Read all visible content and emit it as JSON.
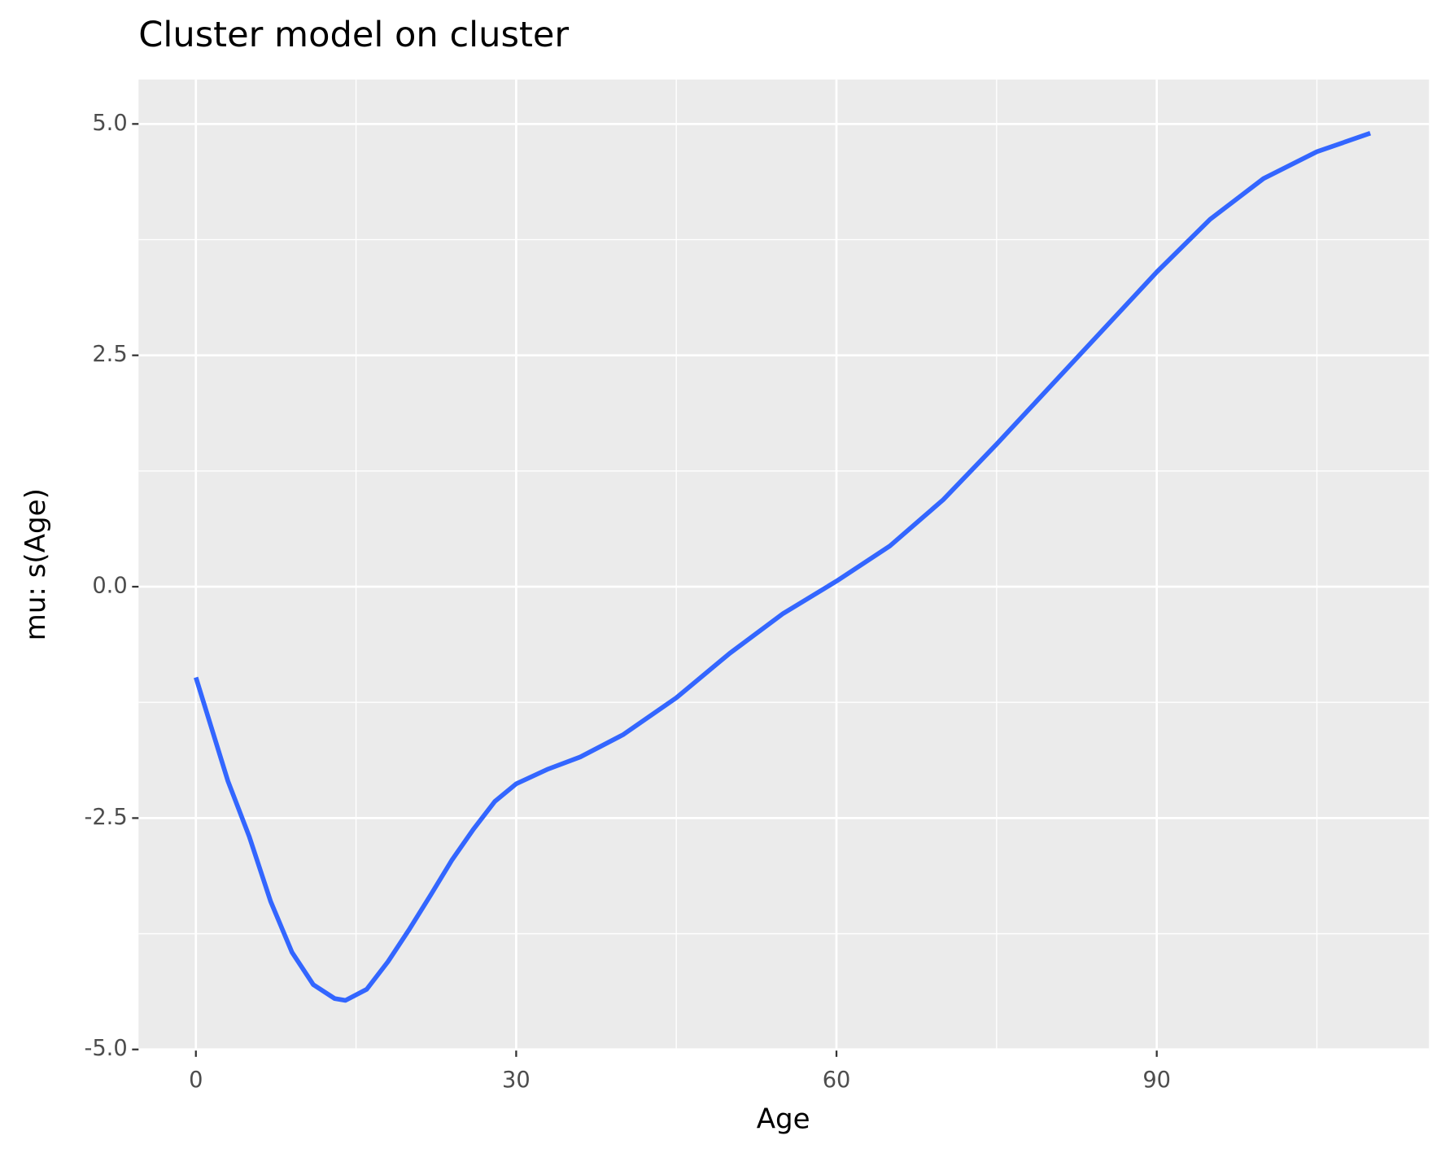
{
  "chart_data": {
    "type": "line",
    "title": "Cluster model on cluster",
    "xlabel": "Age",
    "ylabel": "mu: s(Age)",
    "x": [
      0,
      3,
      5,
      7,
      9,
      11,
      13,
      14,
      16,
      18,
      20,
      22,
      24,
      26,
      28,
      30,
      33,
      36,
      40,
      45,
      50,
      55,
      60,
      65,
      70,
      75,
      80,
      85,
      90,
      95,
      100,
      105,
      110
    ],
    "series": [
      {
        "name": "s(Age)",
        "color": "#3366ff",
        "values": [
          -0.98,
          -2.1,
          -2.7,
          -3.4,
          -3.95,
          -4.3,
          -4.45,
          -4.47,
          -4.35,
          -4.05,
          -3.7,
          -3.33,
          -2.95,
          -2.62,
          -2.32,
          -2.13,
          -1.97,
          -1.84,
          -1.6,
          -1.2,
          -0.72,
          -0.29,
          0.06,
          0.44,
          0.94,
          1.54,
          2.16,
          2.78,
          3.4,
          3.97,
          4.41,
          4.7,
          4.9
        ]
      }
    ],
    "xlim": [
      -5.37,
      115.5
    ],
    "ylim": [
      -5.01,
      5.48
    ],
    "xticks": [
      0,
      30,
      60,
      90
    ],
    "xminor": [
      15,
      45,
      75,
      105
    ],
    "yticks": [
      {
        "value": -5,
        "label": "-5.0"
      },
      -2.5,
      {
        "value": 0,
        "label": "0.0"
      },
      2.5,
      {
        "value": 5,
        "label": "5.0"
      }
    ],
    "yminor": [
      -3.75,
      -1.25,
      1.25,
      3.75
    ],
    "grid": true
  }
}
